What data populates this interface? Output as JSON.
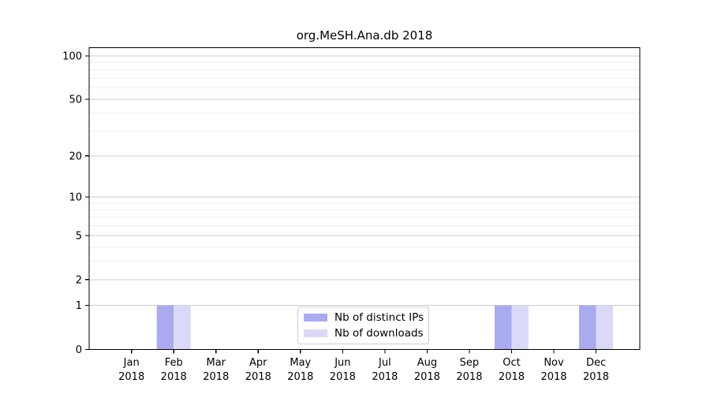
{
  "title": "org.MeSH.Ana.db 2018",
  "legend": {
    "items": [
      {
        "label": "Nb of distinct IPs",
        "color": "#aaaaf0"
      },
      {
        "label": "Nb of downloads",
        "color": "#dadaf8"
      }
    ]
  },
  "chart_data": {
    "type": "bar",
    "title": "org.MeSH.Ana.db 2018",
    "categories": [
      "Jan 2018",
      "Feb 2018",
      "Mar 2018",
      "Apr 2018",
      "May 2018",
      "Jun 2018",
      "Jul 2018",
      "Aug 2018",
      "Sep 2018",
      "Oct 2018",
      "Nov 2018",
      "Dec 2018"
    ],
    "months": [
      "Jan",
      "Feb",
      "Mar",
      "Apr",
      "May",
      "Jun",
      "Jul",
      "Aug",
      "Sep",
      "Oct",
      "Nov",
      "Dec"
    ],
    "year": "2018",
    "series": [
      {
        "name": "Nb of distinct IPs",
        "color": "#aaaaf0",
        "values": [
          0,
          1,
          0,
          0,
          0,
          0,
          0,
          0,
          0,
          1,
          0,
          1
        ]
      },
      {
        "name": "Nb of downloads",
        "color": "#dadaf8",
        "values": [
          0,
          1,
          0,
          0,
          0,
          0,
          0,
          0,
          0,
          1,
          0,
          1
        ]
      }
    ],
    "yscale": "log1p",
    "ylim": [
      0,
      114
    ],
    "yticks_major": [
      0,
      1,
      2,
      5,
      10,
      20,
      50,
      100
    ],
    "yticks_minor": [
      3,
      4,
      6,
      7,
      8,
      9,
      30,
      40,
      60,
      70,
      80,
      90
    ],
    "grid": true,
    "legend_position": "inside-bottom-center",
    "colors": {
      "axis": "#000000",
      "grid_major": "#cccccc",
      "grid_minor": "#efefef",
      "text": "#000000",
      "background": "#ffffff"
    }
  }
}
